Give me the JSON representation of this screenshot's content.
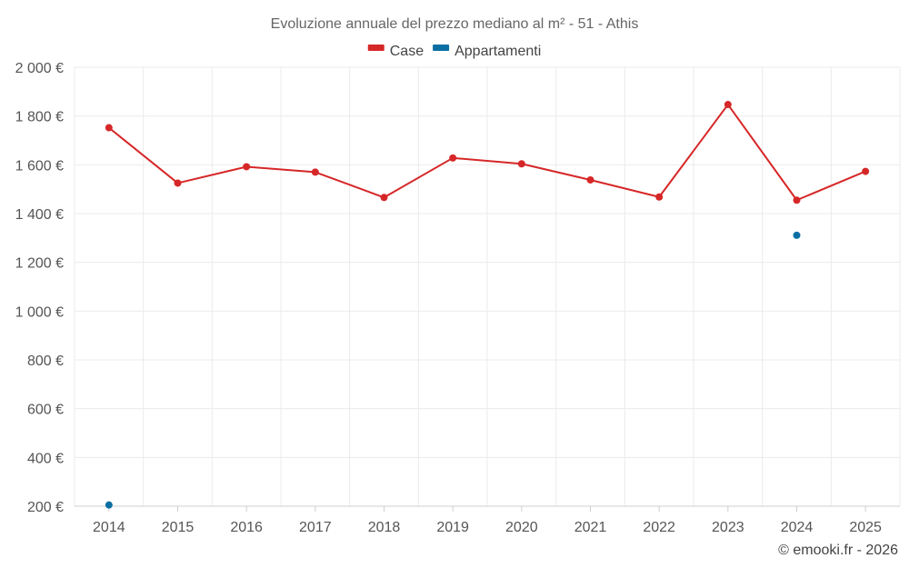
{
  "chart_data": {
    "type": "line",
    "title": "Evoluzione annuale del prezzo mediano al m² - 51 - Athis",
    "categories": [
      "2014",
      "2015",
      "2016",
      "2017",
      "2018",
      "2019",
      "2020",
      "2021",
      "2022",
      "2023",
      "2024",
      "2025"
    ],
    "series": [
      {
        "name": "Case",
        "color": "#d62728",
        "values": [
          1752,
          1525,
          1592,
          1570,
          1466,
          1628,
          1604,
          1538,
          1468,
          1847,
          1455,
          1573
        ]
      },
      {
        "name": "Appartamenti",
        "color": "#0b6fa4",
        "values": [
          205,
          null,
          null,
          null,
          null,
          null,
          null,
          null,
          null,
          null,
          1311,
          null
        ]
      }
    ],
    "y_ticks": [
      200,
      400,
      600,
      800,
      1000,
      1200,
      1400,
      1600,
      1800,
      2000
    ],
    "y_tick_labels": [
      "200 €",
      "400 €",
      "600 €",
      "800 €",
      "1 000 €",
      "1 200 €",
      "1 400 €",
      "1 600 €",
      "1 800 €",
      "2 000 €"
    ],
    "ylim": [
      200,
      2000
    ],
    "grid": true,
    "legend_position": "top-center",
    "xlabel": "",
    "ylabel": ""
  },
  "credit": "© emooki.fr - 2026"
}
